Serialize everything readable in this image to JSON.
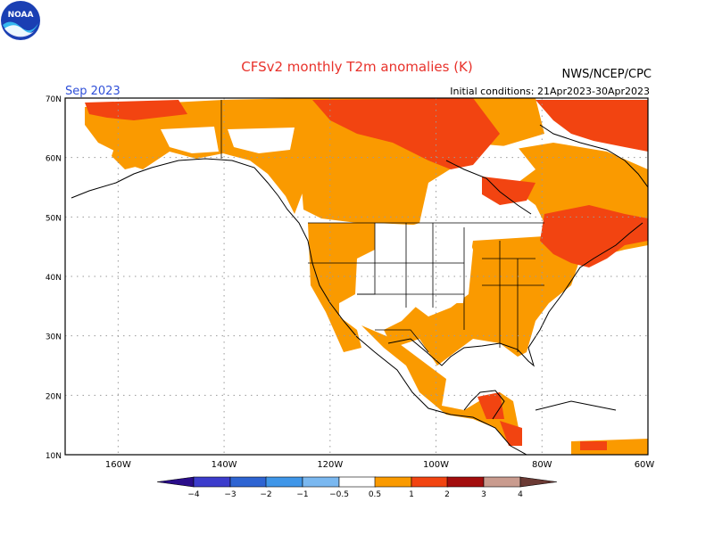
{
  "header": {
    "title": "CFSv2 monthly T2m anomalies (K)",
    "valid_month": "Sep 2023",
    "initial_conditions": "Initial conditions: 21Apr2023-30Apr2023",
    "agency": "NWS/NCEP/CPC",
    "logo_text": "NOAA",
    "title_color": "#e8322b",
    "month_color": "#2f4fd8"
  },
  "map": {
    "lon_labels": [
      "160W",
      "140W",
      "120W",
      "100W",
      "80W",
      "60W"
    ],
    "lat_labels": [
      "70N",
      "60N",
      "50N",
      "40N",
      "30N",
      "20N",
      "10N"
    ],
    "lon_range": [
      -170,
      -60
    ],
    "lat_range": [
      10,
      70
    ]
  },
  "legend": {
    "labels": [
      "−4",
      "−3",
      "−2",
      "−1",
      "−0.5",
      "0.5",
      "1",
      "2",
      "3",
      "4"
    ],
    "colors": {
      "lt_-4": "#2a0d8a",
      "-4_-3": "#3c3ccc",
      "-3_-2": "#2e64d2",
      "-2_-1": "#3f96e8",
      "-1_-0.5": "#7ab8f0",
      "-0.5_0.5": "#ffffff",
      "0.5_1": "#fa9a00",
      "1_2": "#f24411",
      "2_3": "#a30d0d",
      "3_4": "#c99b8e",
      "gt_4": "#6b3a34"
    }
  }
}
